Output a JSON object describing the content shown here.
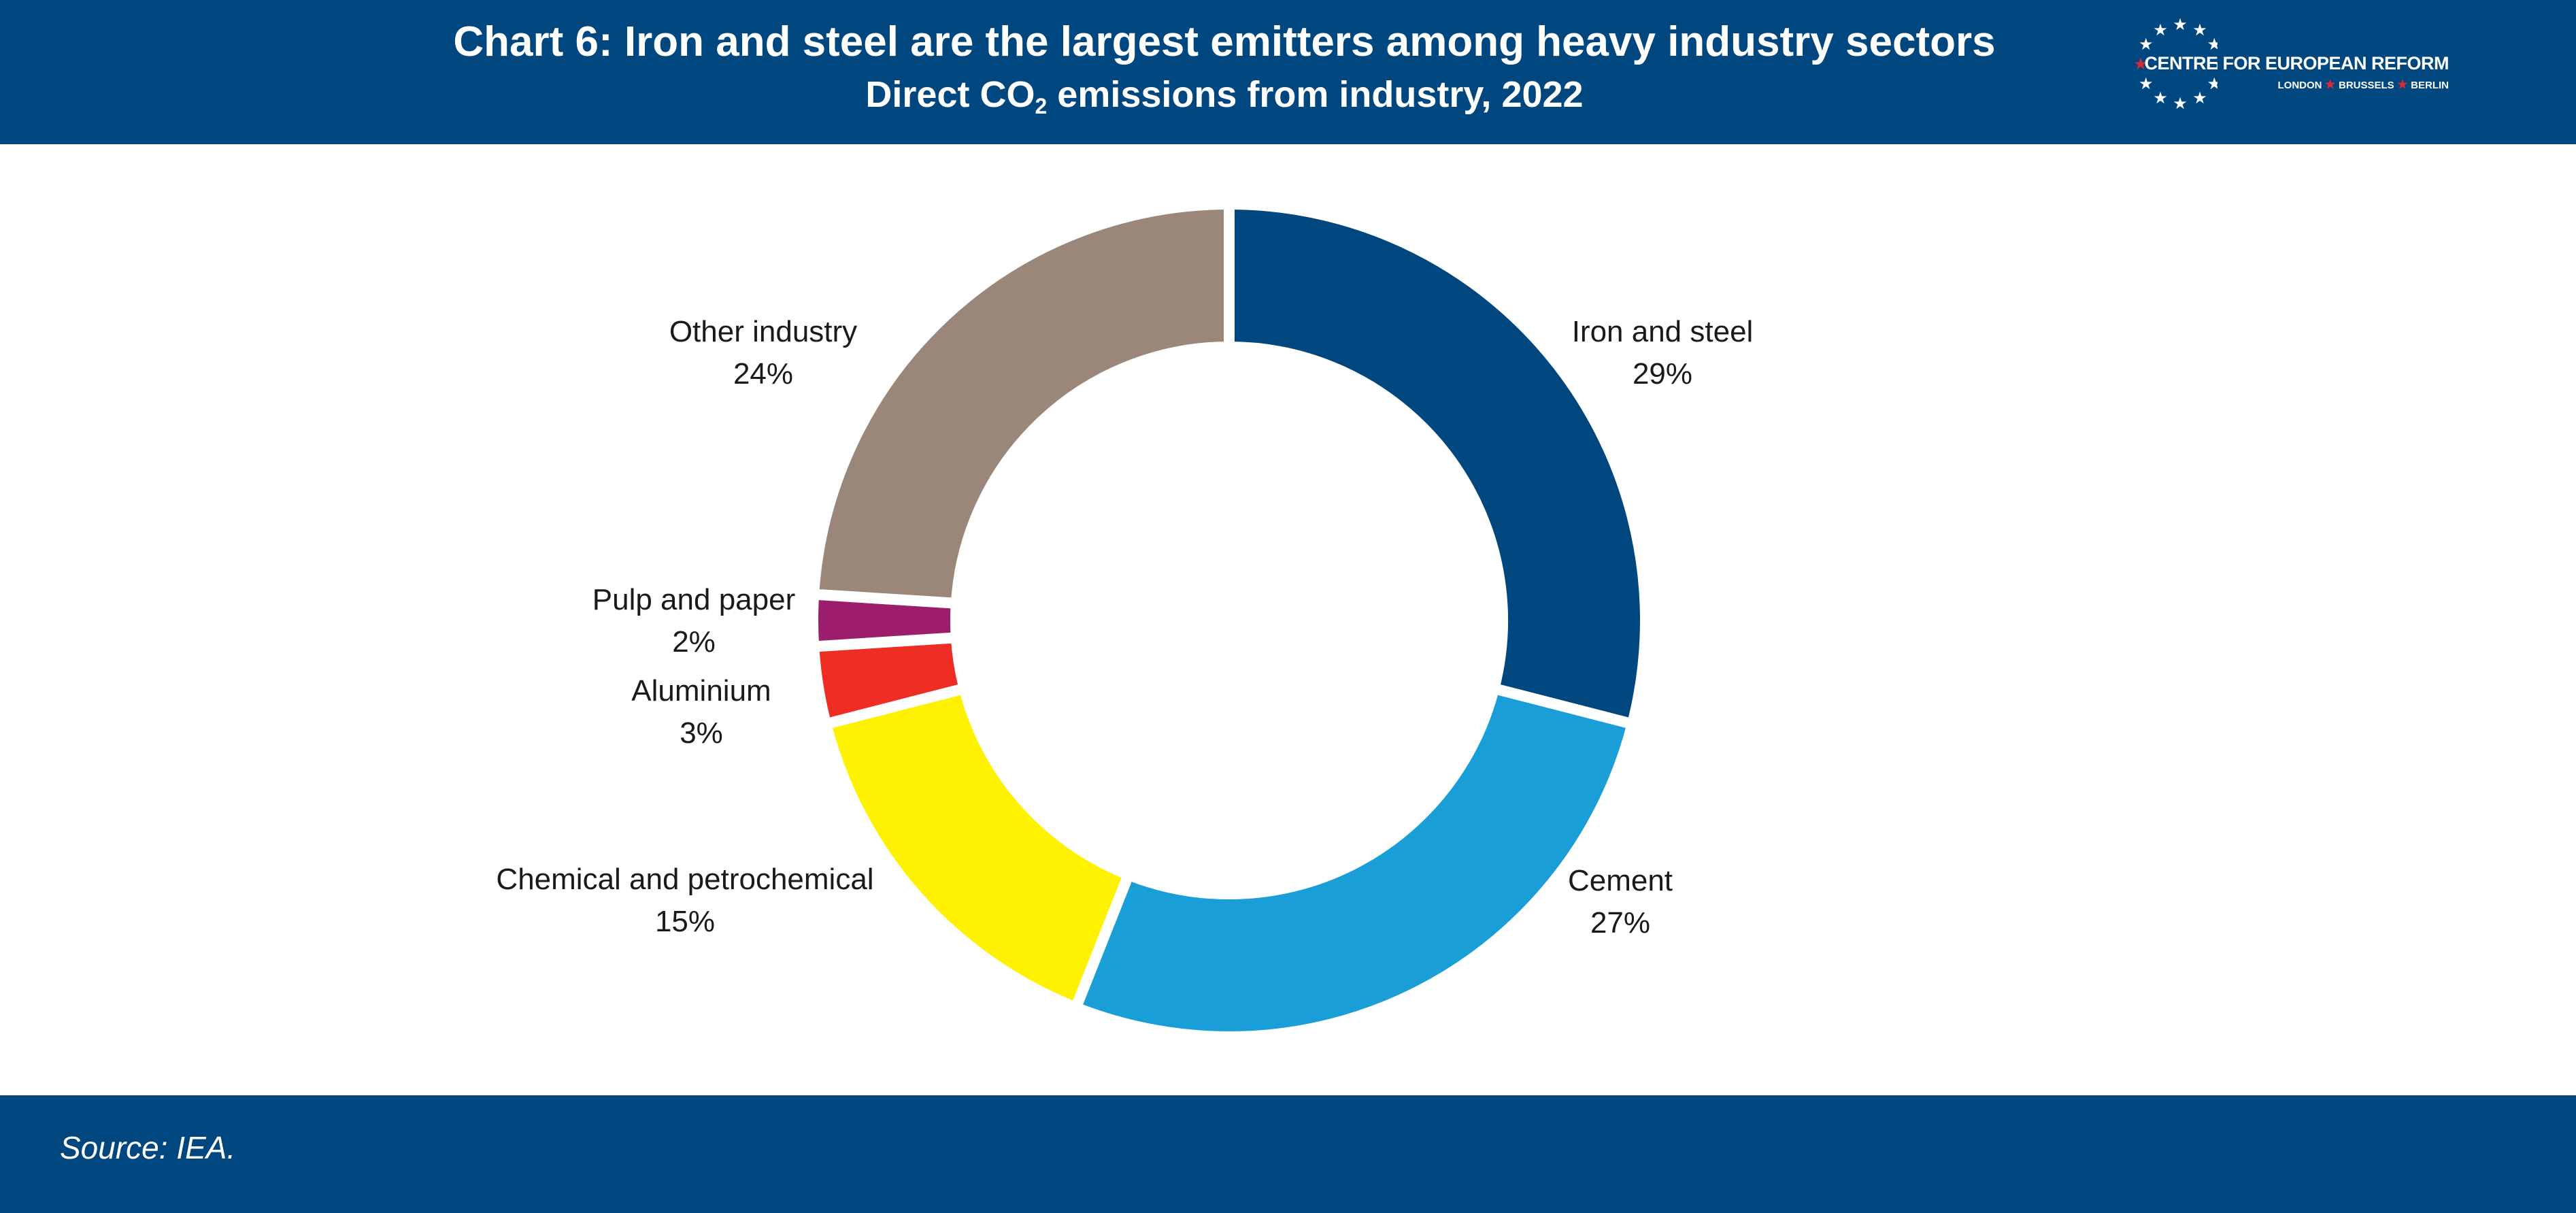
{
  "header": {
    "title": "Chart 6: Iron and steel are the largest emitters among heavy industry sectors",
    "subtitle_pre": "Direct CO",
    "subtitle_sub": "2",
    "subtitle_post": " emissions from industry, 2022"
  },
  "logo": {
    "name": "CENTRE FOR EUROPEAN REFORM",
    "cities": [
      "LONDON",
      "BRUSSELS",
      "BERLIN"
    ],
    "star_color": "#ffffff",
    "accent_color": "#d52b3a"
  },
  "footer": {
    "source": "Source: IEA."
  },
  "colors": {
    "header_bg": "#00467f",
    "footer_bg": "#00467f",
    "background": "#ffffff"
  },
  "chart_data": {
    "type": "pie",
    "variant": "donut",
    "start_angle_deg": 0,
    "direction": "clockwise",
    "legend": "none",
    "slices": [
      {
        "name": "Iron and steel",
        "value": 29,
        "label": "29%",
        "color": "#00467f"
      },
      {
        "name": "Cement",
        "value": 27,
        "label": "27%",
        "color": "#1a9ed8"
      },
      {
        "name": "Chemical and petrochemical",
        "value": 15,
        "label": "15%",
        "color": "#fff200"
      },
      {
        "name": "Aluminium",
        "value": 3,
        "label": "3%",
        "color": "#ee2e24"
      },
      {
        "name": "Pulp and paper",
        "value": 2,
        "label": "2%",
        "color": "#9b1d6b"
      },
      {
        "name": "Other industry",
        "value": 24,
        "label": "24%",
        "color": "#9b877a"
      }
    ]
  }
}
